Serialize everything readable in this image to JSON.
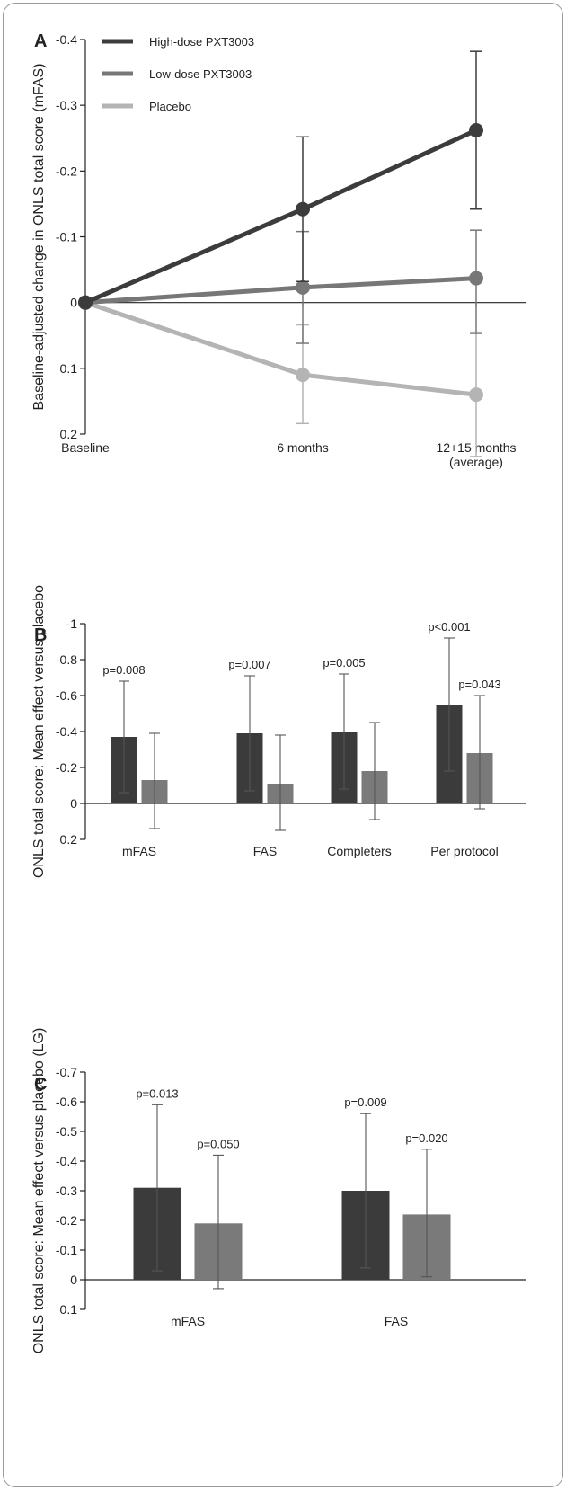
{
  "colors": {
    "high": "#3c3c3c",
    "low": "#777777",
    "placebo": "#b4b4b4",
    "bar_high": "#3b3b3b",
    "bar_low": "#7a7a7a",
    "axis": "#222222"
  },
  "chart_data": [
    {
      "panel": "A",
      "type": "line",
      "ylabel": "Baseline-adjusted change in ONLS total score (mFAS)",
      "ylim": [
        0.2,
        -0.4
      ],
      "yticks": [
        "-0.4",
        "-0.3",
        "-0.2",
        "-0.1",
        "0",
        "0.1",
        "0.2"
      ],
      "ytick_values": [
        -0.4,
        -0.3,
        -0.2,
        -0.1,
        0,
        0.1,
        0.2
      ],
      "categories": [
        "Baseline",
        "6 months",
        "12+15 months\n(average)"
      ],
      "legend_position": "top-left",
      "series": [
        {
          "name": "High-dose PXT3003",
          "color_key": "high",
          "values": [
            0,
            -0.142,
            -0.262
          ],
          "err_low": [
            null,
            -0.032,
            -0.142
          ],
          "err_high": [
            null,
            -0.252,
            -0.382
          ]
        },
        {
          "name": "Low-dose PXT3003",
          "color_key": "low",
          "values": [
            0,
            -0.023,
            -0.037
          ],
          "err_low": [
            null,
            0.062,
            0.047
          ],
          "err_high": [
            null,
            -0.108,
            -0.11
          ]
        },
        {
          "name": "Placebo",
          "color_key": "placebo",
          "values": [
            0,
            0.11,
            0.14
          ],
          "err_low": [
            null,
            0.184,
            0.234
          ],
          "err_high": [
            null,
            0.034,
            0.045
          ]
        }
      ]
    },
    {
      "panel": "B",
      "type": "bar",
      "ylabel": "ONLS total score: Mean effect versus placebo",
      "ylim": [
        0.2,
        -1.0
      ],
      "yticks": [
        "-1",
        "-0.8",
        "-0.6",
        "-0.4",
        "-0.2",
        "0",
        "0.2"
      ],
      "ytick_values": [
        -1.0,
        -0.8,
        -0.6,
        -0.4,
        -0.2,
        0,
        0.2
      ],
      "categories": [
        "mFAS",
        "FAS",
        "Completers",
        "Per protocol"
      ],
      "series": [
        {
          "color_key": "bar_high",
          "values": [
            -0.37,
            -0.39,
            -0.4,
            -0.55
          ],
          "err_low": [
            -0.06,
            -0.07,
            -0.08,
            -0.18
          ],
          "err_high": [
            -0.68,
            -0.71,
            -0.72,
            -0.92
          ],
          "pvalues": [
            "p=0.008",
            "p=0.007",
            "p=0.005",
            "p<0.001"
          ]
        },
        {
          "color_key": "bar_low",
          "values": [
            -0.13,
            -0.11,
            -0.18,
            -0.28
          ],
          "err_low": [
            0.14,
            0.15,
            0.09,
            0.03
          ],
          "err_high": [
            -0.39,
            -0.38,
            -0.45,
            -0.6
          ],
          "pvalues": [
            "",
            "",
            "",
            "p=0.043"
          ]
        }
      ]
    },
    {
      "panel": "C",
      "type": "bar",
      "ylabel": "ONLS total score: Mean effect versus placebo (LG)",
      "ylim": [
        0.1,
        -0.7
      ],
      "yticks": [
        "-0.7",
        "-0.6",
        "-0.5",
        "-0.4",
        "-0.3",
        "-0.2",
        "-0.1",
        "0",
        "0.1"
      ],
      "ytick_values": [
        -0.7,
        -0.6,
        -0.5,
        -0.4,
        -0.3,
        -0.2,
        -0.1,
        0,
        0.1
      ],
      "categories": [
        "mFAS",
        "FAS"
      ],
      "series": [
        {
          "color_key": "bar_high",
          "values": [
            -0.31,
            -0.3
          ],
          "err_low": [
            -0.03,
            -0.04
          ],
          "err_high": [
            -0.59,
            -0.56
          ],
          "pvalues": [
            "p=0.013",
            "p=0.009"
          ]
        },
        {
          "color_key": "bar_low",
          "values": [
            -0.19,
            -0.22
          ],
          "err_low": [
            0.03,
            -0.01
          ],
          "err_high": [
            -0.42,
            -0.44
          ],
          "pvalues": [
            "p=0.050",
            "p=0.020"
          ]
        }
      ]
    }
  ]
}
